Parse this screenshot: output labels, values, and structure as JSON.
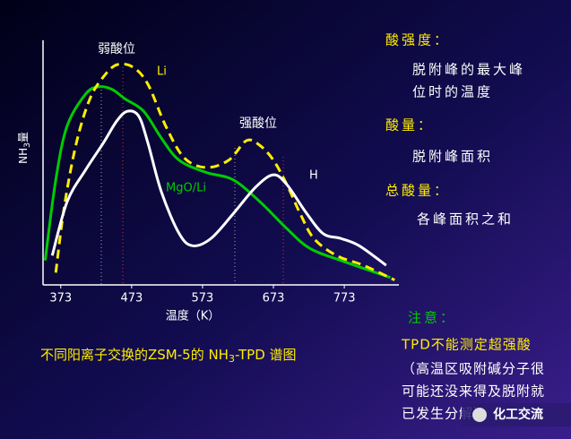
{
  "chart_data": {
    "type": "line",
    "y_label_parts": [
      "NH",
      "3",
      "量"
    ],
    "x_label": "温度（K）",
    "xlim": [
      348,
      850
    ],
    "ylim": [
      0,
      100
    ],
    "xticks": [
      373,
      473,
      573,
      673,
      773
    ],
    "annotations": [
      "弱酸位",
      "强酸位"
    ],
    "series": [
      {
        "name": "MgO/Li",
        "color": "#00cc00",
        "dash": false,
        "x": [
          351,
          366,
          382,
          408,
          426,
          445,
          464,
          490,
          515,
          540,
          578,
          616,
          654,
          692,
          724,
          768,
          838
        ],
        "values": [
          10,
          43,
          65,
          78,
          81,
          80,
          76,
          71,
          60,
          51,
          46,
          43,
          34,
          23,
          15,
          10,
          3
        ]
      },
      {
        "name": "Li",
        "color": "#ffee00",
        "dash": true,
        "x": [
          366,
          378,
          395,
          414,
          433,
          452,
          475,
          496,
          521,
          547,
          578,
          610,
          635,
          654,
          673,
          692,
          711,
          730,
          762,
          800,
          844
        ],
        "values": [
          5,
          32,
          58,
          76,
          85,
          90,
          89,
          82,
          65,
          52,
          48,
          51,
          59,
          57,
          51,
          41,
          29,
          19,
          12,
          8,
          2
        ]
      },
      {
        "name": "H",
        "color": "#ffffff",
        "dash": false,
        "x": [
          361,
          382,
          408,
          433,
          452,
          467,
          483,
          496,
          515,
          540,
          559,
          585,
          616,
          648,
          673,
          692,
          718,
          743,
          768,
          794,
          832
        ],
        "values": [
          12,
          34,
          47,
          58,
          67,
          71,
          69,
          58,
          38,
          21,
          16,
          19,
          29,
          40,
          45,
          41,
          30,
          21,
          19,
          16,
          8
        ]
      }
    ],
    "caption_parts": [
      "不同阳离子交换的ZSM-5的 NH",
      "3",
      "-TPD 谱图"
    ]
  },
  "notes": {
    "acid_strength": "酸强度：",
    "acid_strength_text": [
      "脱附峰的最大峰",
      "位时的温度"
    ],
    "acid_amount": "酸量：",
    "acid_amount_text": "脱附峰面积",
    "total_acid": "总酸量：",
    "total_acid_text": "各峰面积之和",
    "attention": "注意：",
    "warning": "TPD不能测定超强酸",
    "warning_text": [
      "（高温区吸附碱分子很",
      "可能还没来得及脱附就",
      "已发生分解）"
    ]
  },
  "watermark": "化工交流"
}
